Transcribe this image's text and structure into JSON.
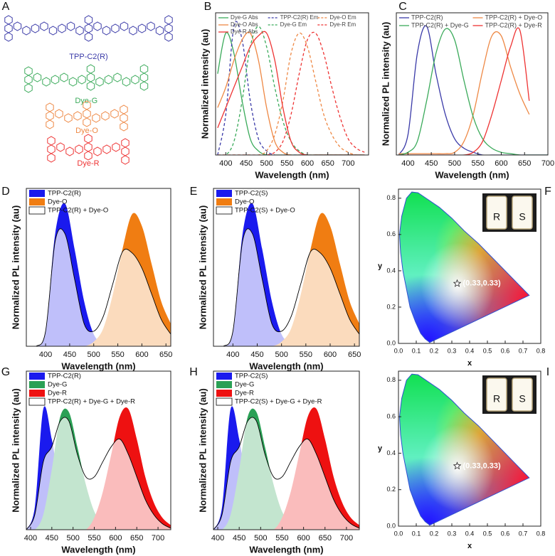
{
  "chart_data": [
    {
      "panel": "A",
      "type": "structures",
      "labels": [
        "TPP-C2(R)",
        "Dye-G",
        "Dye-O",
        "Dye-R"
      ],
      "colors": [
        "#3a3aa8",
        "#3aaa5a",
        "#ee8844",
        "#ee3333"
      ]
    },
    {
      "panel": "B",
      "type": "line",
      "xlabel": "Wavelength (nm)",
      "ylabel": "Normalized intensity (au)",
      "xlim": [
        375,
        750
      ],
      "ylim": [
        0,
        1.05
      ],
      "xticks": [
        400,
        450,
        500,
        550,
        600,
        650,
        700
      ],
      "legend_columns": 3,
      "x": [
        380,
        400,
        420,
        440,
        460,
        480,
        500,
        520,
        540,
        560,
        580,
        600,
        620,
        640,
        660,
        680,
        700,
        720,
        740
      ],
      "series": [
        {
          "name": "Dye-G Abs",
          "color": "#3aaa5a",
          "dash": false,
          "values": [
            0.6,
            0.9,
            0.75,
            0.4,
            0.12,
            0.03,
            0,
            0,
            0,
            0,
            0,
            0,
            0,
            0,
            0,
            0,
            0,
            0,
            0
          ]
        },
        {
          "name": "TPP-C2(R) Em",
          "color": "#3a3aa8",
          "dash": true,
          "values": [
            0,
            0.3,
            0.95,
            0.85,
            0.4,
            0.12,
            0.03,
            0,
            0,
            0,
            0,
            0,
            0,
            0,
            0,
            0,
            0,
            0,
            0
          ]
        },
        {
          "name": "Dye-O Em",
          "color": "#ee8844",
          "dash": true,
          "values": [
            0,
            0,
            0,
            0,
            0,
            0,
            0.03,
            0.15,
            0.4,
            0.75,
            0.9,
            0.8,
            0.55,
            0.3,
            0.15,
            0.06,
            0.02,
            0,
            0
          ]
        },
        {
          "name": "Dye-O Abs",
          "color": "#ee8844",
          "dash": false,
          "values": [
            0.35,
            0.5,
            0.7,
            0.85,
            0.9,
            0.7,
            0.35,
            0.1,
            0.02,
            0,
            0,
            0,
            0,
            0,
            0,
            0,
            0,
            0,
            0
          ]
        },
        {
          "name": "Dye-G Em",
          "color": "#3aaa5a",
          "dash": true,
          "values": [
            0,
            0,
            0.1,
            0.4,
            0.8,
            0.95,
            0.8,
            0.5,
            0.25,
            0.1,
            0.03,
            0,
            0,
            0,
            0,
            0,
            0,
            0,
            0
          ]
        },
        {
          "name": "Dye-R Em",
          "color": "#ee3333",
          "dash": true,
          "values": [
            0,
            0,
            0,
            0,
            0,
            0,
            0,
            0.02,
            0.1,
            0.3,
            0.6,
            0.85,
            0.9,
            0.75,
            0.5,
            0.28,
            0.12,
            0.05,
            0.02
          ]
        },
        {
          "name": "Dye-R Abs",
          "color": "#ee3333",
          "dash": false,
          "values": [
            0.2,
            0.35,
            0.5,
            0.65,
            0.8,
            0.88,
            0.9,
            0.7,
            0.35,
            0.1,
            0.02,
            0,
            0,
            0,
            0,
            0,
            0,
            0,
            0
          ]
        }
      ]
    },
    {
      "panel": "C",
      "type": "line",
      "xlabel": "Wavelength (nm)",
      "ylabel": "Normalized PL intensity (au)",
      "xlim": [
        375,
        700
      ],
      "ylim": [
        0,
        1.05
      ],
      "xticks": [
        400,
        450,
        500,
        550,
        600,
        650,
        700
      ],
      "legend_columns": 2,
      "x": [
        380,
        400,
        420,
        440,
        460,
        480,
        500,
        520,
        540,
        560,
        580,
        600,
        620,
        640,
        660,
        680,
        700
      ],
      "series": [
        {
          "name": "TPP-C2(R)",
          "color": "#3a3aa8",
          "dash": false,
          "values": [
            0,
            0.15,
            0.75,
            0.95,
            0.6,
            0.3,
            0.12,
            0.05,
            0.02,
            0,
            0,
            0,
            0,
            0,
            0,
            0,
            0
          ]
        },
        {
          "name": "TPP-C2(R) + Dye-O",
          "color": "#ee8844",
          "dash": false,
          "values": [
            0.01,
            0.01,
            0.01,
            0.01,
            0.01,
            0.01,
            0.02,
            0.1,
            0.3,
            0.62,
            0.88,
            0.88,
            0.65,
            0.45,
            0.3,
            null,
            null
          ]
        },
        {
          "name": "TPP-C2(R) + Dye-G",
          "color": "#3aaa5a",
          "dash": false,
          "values": [
            0,
            0.02,
            0.1,
            0.4,
            0.75,
            0.93,
            0.85,
            0.55,
            0.28,
            0.12,
            0.05,
            0.02,
            0.01,
            0,
            0,
            0,
            0
          ]
        },
        {
          "name": "TPP-C2(R) + Dye-R",
          "color": "#ee3333",
          "dash": false,
          "values": [
            0,
            0,
            0,
            0,
            0,
            0,
            0,
            0,
            0.02,
            0.1,
            0.3,
            0.55,
            0.8,
            0.92,
            0.4,
            null,
            null
          ]
        }
      ]
    },
    {
      "panel": "D",
      "type": "area",
      "xlabel": "Wavelength (nm)",
      "ylabel": "Normalized PL intensity (au)",
      "xlim": [
        360,
        660
      ],
      "ylim": [
        0,
        1.05
      ],
      "xticks": [
        400,
        450,
        500,
        550,
        600,
        650
      ],
      "legend_columns": 1,
      "x": [
        360,
        380,
        400,
        420,
        440,
        460,
        480,
        500,
        520,
        540,
        560,
        580,
        600,
        620,
        640,
        660
      ],
      "series": [
        {
          "name": "TPP-C2(R)",
          "color": "#1a1aee",
          "values": [
            0,
            0,
            0.1,
            0.75,
            0.95,
            0.65,
            0.3,
            0.08,
            0.02,
            0,
            0,
            0,
            0,
            0,
            0,
            0
          ]
        },
        {
          "name": "Dye-O",
          "color": "#f07d12",
          "values": [
            0,
            0,
            0,
            0,
            0,
            0,
            0,
            0.03,
            0.12,
            0.35,
            0.65,
            0.88,
            0.8,
            0.55,
            0.3,
            0.15
          ]
        },
        {
          "name": "TPP-C2(R) + Dye-O",
          "color": "#000000",
          "fill": "#ffffff",
          "values": [
            0,
            0,
            0.1,
            0.7,
            0.75,
            0.45,
            0.15,
            0.1,
            0.2,
            0.42,
            0.63,
            0.62,
            0.52,
            0.35,
            0.18,
            0.08
          ]
        }
      ]
    },
    {
      "panel": "E",
      "type": "area",
      "xlabel": "Wavelength (nm)",
      "ylabel": "Normalized PL intensity (au)",
      "xlim": [
        360,
        660
      ],
      "ylim": [
        0,
        1.05
      ],
      "xticks": [
        400,
        450,
        500,
        550,
        600,
        650
      ],
      "legend_columns": 1,
      "x": [
        360,
        380,
        400,
        420,
        440,
        460,
        480,
        500,
        520,
        540,
        560,
        580,
        600,
        620,
        640,
        660
      ],
      "series": [
        {
          "name": "TPP-C2(S)",
          "color": "#1a1aee",
          "values": [
            0,
            0,
            0.1,
            0.75,
            0.95,
            0.65,
            0.3,
            0.08,
            0.02,
            0,
            0,
            0,
            0,
            0,
            0,
            0
          ]
        },
        {
          "name": "Dye-O",
          "color": "#f07d12",
          "values": [
            0,
            0,
            0,
            0,
            0,
            0,
            0,
            0.03,
            0.12,
            0.35,
            0.65,
            0.88,
            0.8,
            0.55,
            0.3,
            0.15
          ]
        },
        {
          "name": "TPP-C2(S) + Dye-O",
          "color": "#000000",
          "fill": "#ffffff",
          "values": [
            0,
            0,
            0.1,
            0.7,
            0.75,
            0.45,
            0.15,
            0.1,
            0.2,
            0.42,
            0.63,
            0.62,
            0.52,
            0.35,
            0.18,
            0.08
          ]
        }
      ]
    },
    {
      "panel": "F",
      "type": "cie",
      "xlabel": "x",
      "ylabel": "y",
      "xlim": [
        0,
        0.8
      ],
      "ylim": [
        0,
        0.85
      ],
      "xticks": [
        {
          "value": 0,
          "label": "0.0"
        },
        0.1,
        0.2,
        0.3,
        0.4,
        0.5,
        0.6,
        0.7,
        0.8
      ],
      "yticks": [
        {
          "value": 0,
          "label": "0.0"
        },
        0.2,
        0.4,
        0.6,
        0.8
      ],
      "point": [
        0.33,
        0.33
      ],
      "annotation": "(0.33,0.33)",
      "inset_labels": [
        "R",
        "S"
      ]
    },
    {
      "panel": "G",
      "type": "area",
      "xlabel": "Wavelength (nm)",
      "ylabel": "Normalized PL intensity (au)",
      "xlim": [
        390,
        730
      ],
      "ylim": [
        0,
        1.05
      ],
      "xticks": [
        400,
        450,
        500,
        550,
        600,
        650,
        700
      ],
      "legend_columns": 1,
      "x": [
        390,
        410,
        430,
        450,
        470,
        490,
        510,
        530,
        550,
        570,
        590,
        610,
        630,
        650,
        670,
        690,
        710,
        730
      ],
      "series": [
        {
          "name": "TPP-C2(R)",
          "color": "#1a1aee",
          "values": [
            0,
            0.15,
            0.8,
            0.6,
            0.25,
            0.08,
            0.02,
            0,
            0,
            0,
            0,
            0,
            0,
            0,
            0,
            0,
            0,
            0
          ]
        },
        {
          "name": "Dye-G",
          "color": "#2aa055",
          "values": [
            0,
            0,
            0.1,
            0.4,
            0.75,
            0.78,
            0.55,
            0.3,
            0.12,
            0.04,
            0,
            0,
            0,
            0,
            0,
            0,
            0,
            0
          ]
        },
        {
          "name": "Dye-R",
          "color": "#ee1111",
          "values": [
            0,
            0,
            0,
            0,
            0,
            0,
            0,
            0,
            0.08,
            0.25,
            0.5,
            0.75,
            0.8,
            0.6,
            0.35,
            0.18,
            0.08,
            0.03
          ]
        },
        {
          "name": "TPP-C2(R) + Dye-G + Dye-R",
          "color": "#000000",
          "fill": "#ffffff",
          "values": [
            0,
            0.1,
            0.45,
            0.55,
            0.72,
            0.72,
            0.5,
            0.35,
            0.35,
            0.45,
            0.55,
            0.6,
            0.5,
            0.35,
            0.2,
            0.1,
            0.04,
            0.01
          ]
        }
      ]
    },
    {
      "panel": "H",
      "type": "area",
      "xlabel": "Wavelength (nm)",
      "ylabel": "Normalized PL intensity (au)",
      "xlim": [
        390,
        730
      ],
      "ylim": [
        0,
        1.05
      ],
      "xticks": [
        400,
        450,
        500,
        550,
        600,
        650,
        700
      ],
      "legend_columns": 1,
      "x": [
        390,
        410,
        430,
        450,
        470,
        490,
        510,
        530,
        550,
        570,
        590,
        610,
        630,
        650,
        670,
        690,
        710,
        730
      ],
      "series": [
        {
          "name": "TPP-C2(S)",
          "color": "#1a1aee",
          "values": [
            0,
            0.15,
            0.8,
            0.6,
            0.25,
            0.08,
            0.02,
            0,
            0,
            0,
            0,
            0,
            0,
            0,
            0,
            0,
            0,
            0
          ]
        },
        {
          "name": "Dye-G",
          "color": "#2aa055",
          "values": [
            0,
            0,
            0.1,
            0.4,
            0.75,
            0.78,
            0.55,
            0.3,
            0.12,
            0.04,
            0,
            0,
            0,
            0,
            0,
            0,
            0,
            0
          ]
        },
        {
          "name": "Dye-R",
          "color": "#ee1111",
          "values": [
            0,
            0,
            0,
            0,
            0,
            0,
            0,
            0,
            0.08,
            0.25,
            0.5,
            0.75,
            0.8,
            0.6,
            0.35,
            0.18,
            0.08,
            0.03
          ]
        },
        {
          "name": "TPP-C2(S) + Dye-G + Dye-R",
          "color": "#000000",
          "fill": "#ffffff",
          "values": [
            0,
            0.1,
            0.45,
            0.55,
            0.72,
            0.72,
            0.5,
            0.35,
            0.35,
            0.45,
            0.55,
            0.6,
            0.5,
            0.35,
            0.2,
            0.1,
            0.04,
            0.01
          ]
        }
      ]
    },
    {
      "panel": "I",
      "type": "cie",
      "xlabel": "x",
      "ylabel": "y",
      "xlim": [
        0,
        0.8
      ],
      "ylim": [
        0,
        0.85
      ],
      "xticks": [
        {
          "value": 0,
          "label": "0.0"
        },
        0.1,
        0.2,
        0.3,
        0.4,
        0.5,
        0.6,
        0.7,
        0.8
      ],
      "yticks": [
        {
          "value": 0,
          "label": "0.0"
        },
        0.2,
        0.4,
        0.6,
        0.8
      ],
      "point": [
        0.33,
        0.33
      ],
      "annotation": "(0.33,0.33)",
      "inset_labels": [
        "R",
        "S"
      ]
    }
  ]
}
